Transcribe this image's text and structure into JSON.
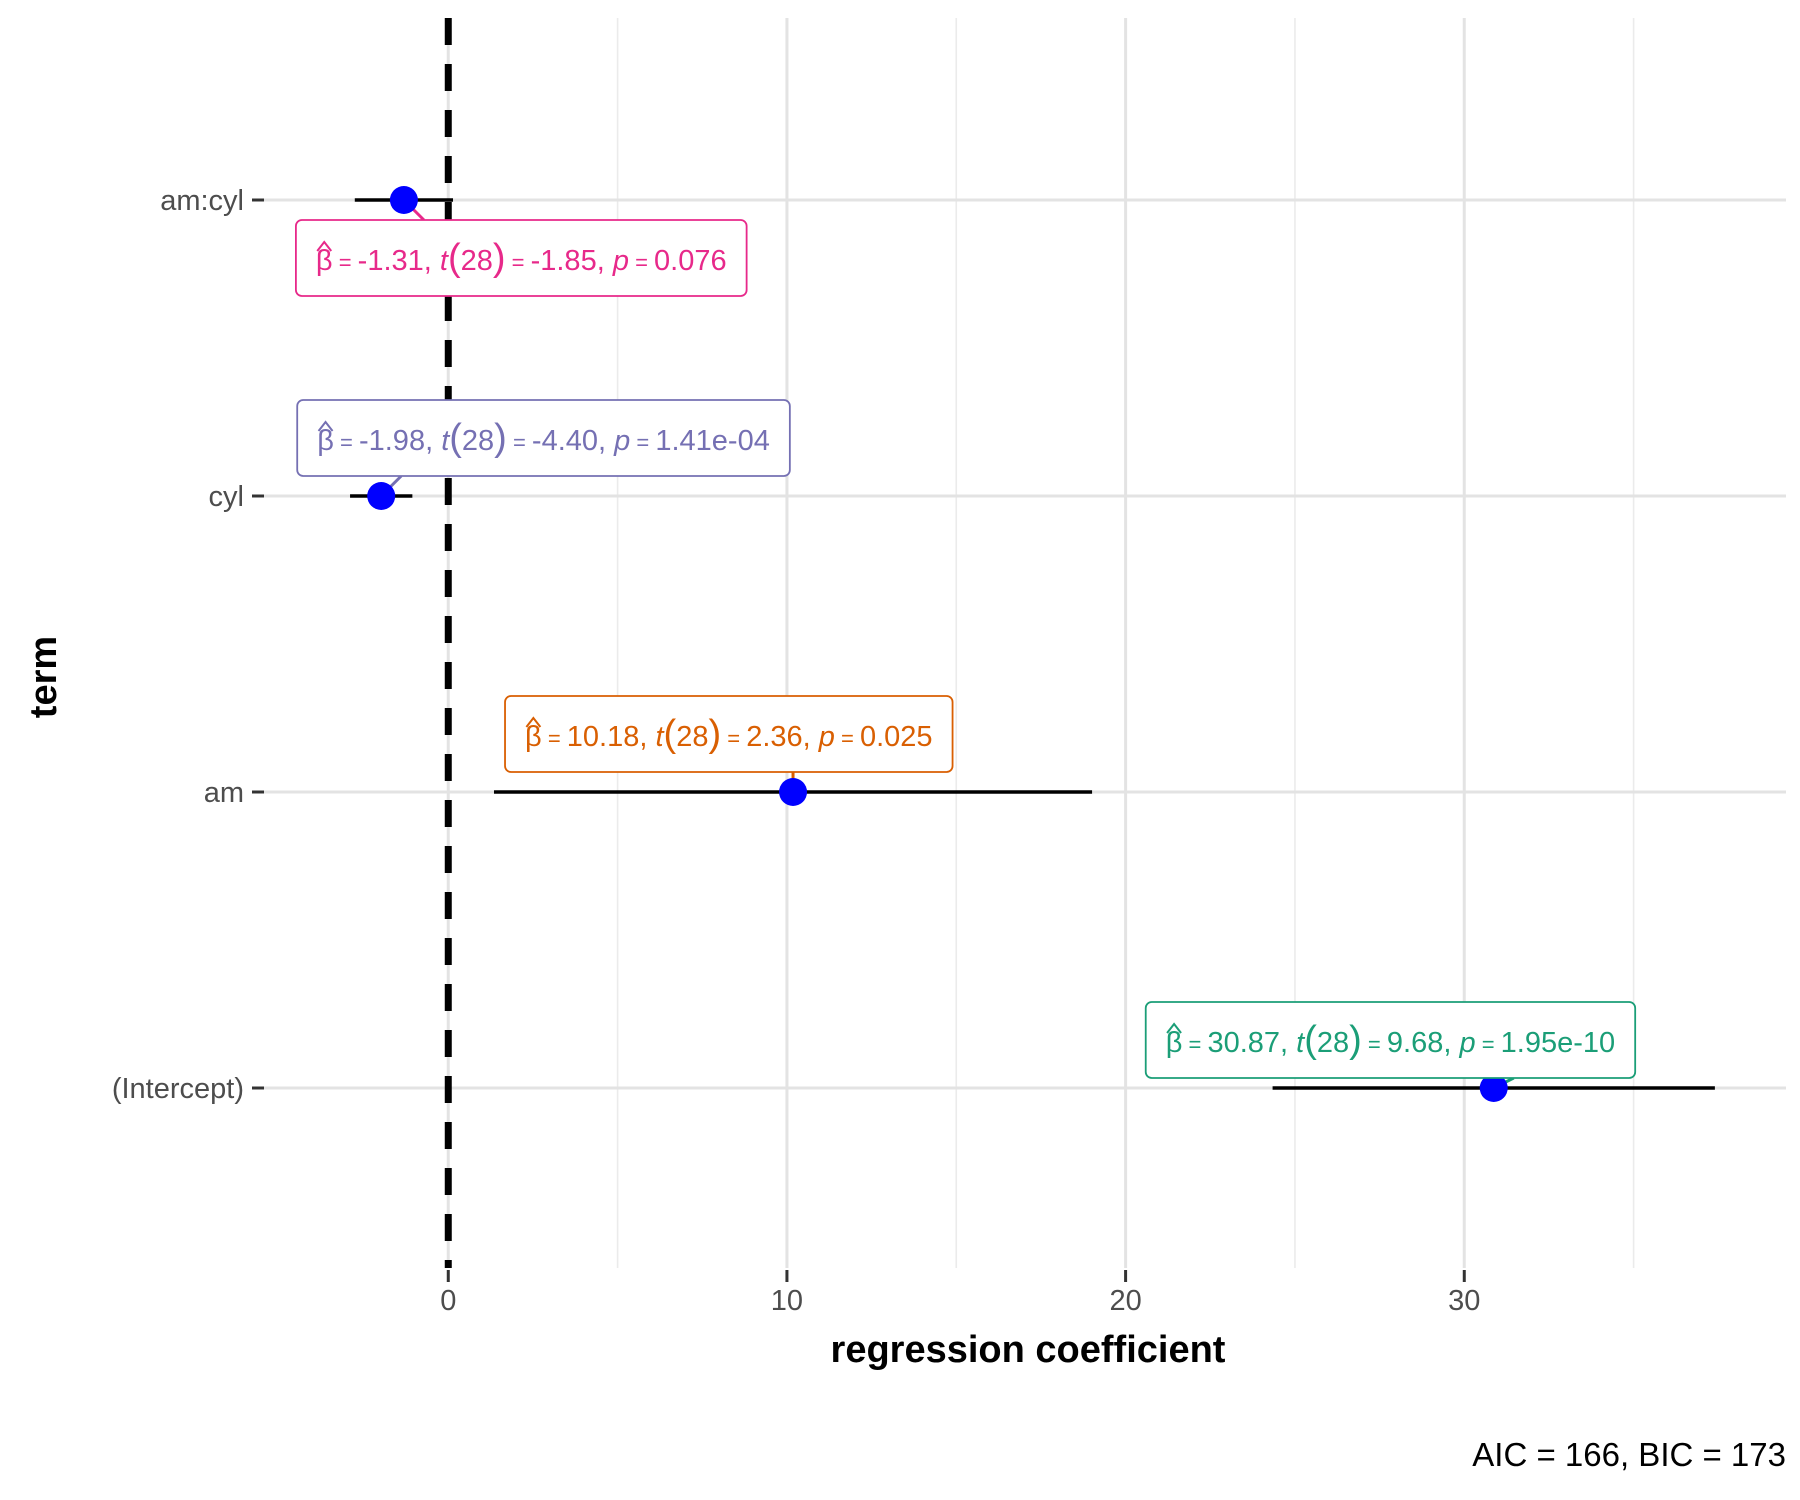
{
  "chart_data": {
    "type": "coefficient-plot",
    "xlabel": "regression coefficient",
    "ylabel": "term",
    "caption": "AIC = 166, BIC = 173",
    "xlim": [
      -5.5,
      39.5
    ],
    "x_ticks": [
      0,
      10,
      20,
      30
    ],
    "x_minor_grid": [
      5,
      15,
      25,
      35
    ],
    "reference_line": 0,
    "terms": [
      {
        "name": "am:cyl",
        "estimate": -1.31,
        "conf_low": -2.76,
        "conf_high": 0.14,
        "color": "#E7298A",
        "label": {
          "beta": "-1.31",
          "df": "28",
          "t": "-1.85",
          "p": "0.076"
        },
        "label_pos": "below-right"
      },
      {
        "name": "cyl",
        "estimate": -1.98,
        "conf_low": -2.9,
        "conf_high": -1.06,
        "color": "#7570B3",
        "label": {
          "beta": "-1.98",
          "df": "28",
          "t": "-4.40",
          "p": "1.41e-04"
        },
        "label_pos": "above-right"
      },
      {
        "name": "am",
        "estimate": 10.18,
        "conf_low": 1.35,
        "conf_high": 19.01,
        "color": "#D95F02",
        "label": {
          "beta": "10.18",
          "df": "28",
          "t": "2.36",
          "p": "0.025"
        },
        "label_pos": "above"
      },
      {
        "name": "(Intercept)",
        "estimate": 30.87,
        "conf_low": 24.34,
        "conf_high": 37.4,
        "color": "#1B9E77",
        "label": {
          "beta": "30.87",
          "df": "28",
          "t": "9.68",
          "p": "1.95e-10"
        },
        "label_pos": "above-left"
      }
    ],
    "point_color": "#0000FF",
    "errorbar_color": "#000000"
  }
}
